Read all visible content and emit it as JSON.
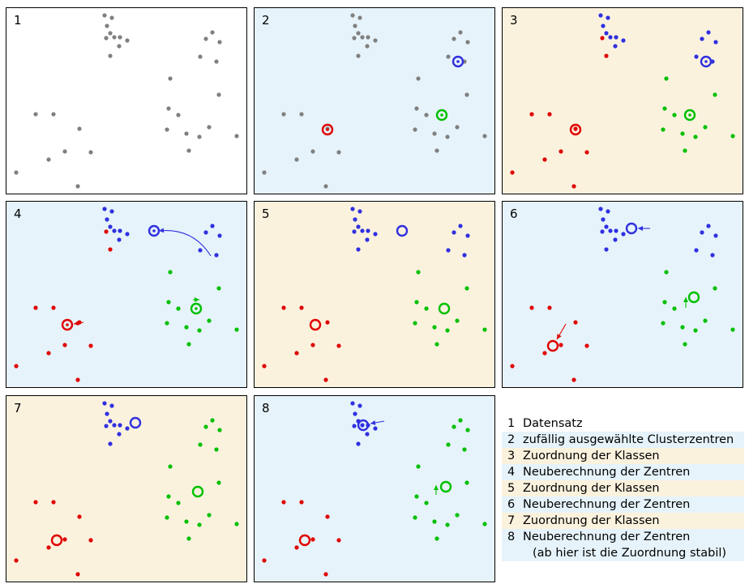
{
  "colors": {
    "gray": "#808080",
    "red": "#e00000",
    "green": "#00c000",
    "blue": "#3030e0",
    "bg_white": "#ffffff",
    "bg_blue": "#e6f3fa",
    "bg_beige": "#fbf2de"
  },
  "panels": [
    {
      "label": "1",
      "bg": "white",
      "mode": "plain",
      "centers": []
    },
    {
      "label": "2",
      "bg": "blue",
      "mode": "plain",
      "centers": [
        [
          "red",
          90,
          150
        ],
        [
          "green",
          231,
          132
        ],
        [
          "blue",
          251,
          66
        ]
      ]
    },
    {
      "label": "3",
      "bg": "beige",
      "mode": "assign",
      "centers": [
        [
          "red",
          90,
          150
        ],
        [
          "green",
          231,
          132
        ],
        [
          "blue",
          251,
          66
        ]
      ]
    },
    {
      "label": "4",
      "bg": "blue",
      "mode": "assign",
      "centers": [
        [
          "red",
          75,
          152
        ],
        [
          "green",
          234,
          132
        ],
        [
          "blue",
          182,
          36
        ]
      ]
    },
    {
      "label": "5",
      "bg": "beige",
      "mode": "assign2",
      "centers": [
        [
          "red",
          75,
          152
        ],
        [
          "green",
          234,
          132
        ],
        [
          "blue",
          182,
          36
        ]
      ]
    },
    {
      "label": "6",
      "bg": "blue",
      "mode": "assign2",
      "centers": [
        [
          "red",
          62,
          178
        ],
        [
          "green",
          236,
          118
        ],
        [
          "blue",
          159,
          33
        ]
      ]
    },
    {
      "label": "7",
      "bg": "beige",
      "mode": "assign3",
      "centers": [
        [
          "red",
          62,
          178
        ],
        [
          "green",
          236,
          118
        ],
        [
          "blue",
          159,
          33
        ]
      ]
    },
    {
      "label": "8",
      "bg": "blue",
      "mode": "assign3",
      "centers": [
        [
          "red",
          62,
          178
        ],
        [
          "green",
          236,
          112
        ],
        [
          "blue",
          134,
          36
        ]
      ]
    }
  ],
  "points": {
    "A": [
      [
        121,
        9
      ],
      [
        130,
        12
      ],
      [
        124,
        22
      ],
      [
        128,
        31
      ],
      [
        123,
        37
      ],
      [
        133,
        36
      ],
      [
        140,
        36
      ],
      [
        149,
        40
      ],
      [
        139,
        47
      ],
      [
        128,
        59
      ]
    ],
    "B": [
      [
        254,
        30
      ],
      [
        246,
        38
      ],
      [
        263,
        42
      ],
      [
        239,
        60
      ],
      [
        259,
        66
      ],
      [
        202,
        87
      ],
      [
        262,
        107
      ],
      [
        200,
        124
      ],
      [
        212,
        132
      ],
      [
        198,
        150
      ],
      [
        250,
        147
      ],
      [
        222,
        155
      ],
      [
        238,
        159
      ],
      [
        284,
        158
      ],
      [
        225,
        176
      ]
    ],
    "C": [
      [
        36,
        131
      ],
      [
        58,
        131
      ],
      [
        90,
        149
      ],
      [
        72,
        177
      ],
      [
        104,
        178
      ],
      [
        52,
        187
      ],
      [
        12,
        203
      ],
      [
        88,
        220
      ]
    ]
  },
  "arrows": [
    {
      "panel": 3,
      "from": [
        252,
        67
      ],
      "to": [
        188,
        36
      ],
      "color": "blue",
      "curve": true
    },
    {
      "panel": 3,
      "from": [
        95,
        149
      ],
      "to": [
        83,
        151
      ],
      "color": "red"
    },
    {
      "panel": 3,
      "from": [
        230,
        121
      ],
      "to": [
        238,
        121
      ],
      "color": "green"
    },
    {
      "panel": 5,
      "from": [
        182,
        33
      ],
      "to": [
        167,
        33
      ],
      "color": "blue"
    },
    {
      "panel": 5,
      "from": [
        78,
        151
      ],
      "to": [
        67,
        170
      ],
      "color": "red"
    },
    {
      "panel": 5,
      "from": [
        226,
        131
      ],
      "to": [
        226,
        118
      ],
      "color": "green"
    },
    {
      "panel": 7,
      "from": [
        160,
        31
      ],
      "to": [
        143,
        34
      ],
      "color": "blue"
    },
    {
      "panel": 7,
      "from": [
        224,
        122
      ],
      "to": [
        224,
        110
      ],
      "color": "green"
    }
  ],
  "legend": [
    {
      "num": "1",
      "text": "Datensatz",
      "bg": "white"
    },
    {
      "num": "2",
      "text": "zufällig ausgewählte Clusterzentren",
      "bg": "blue"
    },
    {
      "num": "3",
      "text": "Zuordnung der Klassen",
      "bg": "beige"
    },
    {
      "num": "4",
      "text": "Neuberechnung der Zentren",
      "bg": "blue"
    },
    {
      "num": "5",
      "text": "Zuordnung der Klassen",
      "bg": "beige"
    },
    {
      "num": "6",
      "text": "Neuberechnung der Zentren",
      "bg": "blue"
    },
    {
      "num": "7",
      "text": "Zuordnung der Klassen",
      "bg": "beige"
    },
    {
      "num": "8",
      "text": "Neuberechnung der Zentren",
      "bg": "blue"
    }
  ],
  "legend_note": "(ab hier ist die Zuordnung stabil)"
}
